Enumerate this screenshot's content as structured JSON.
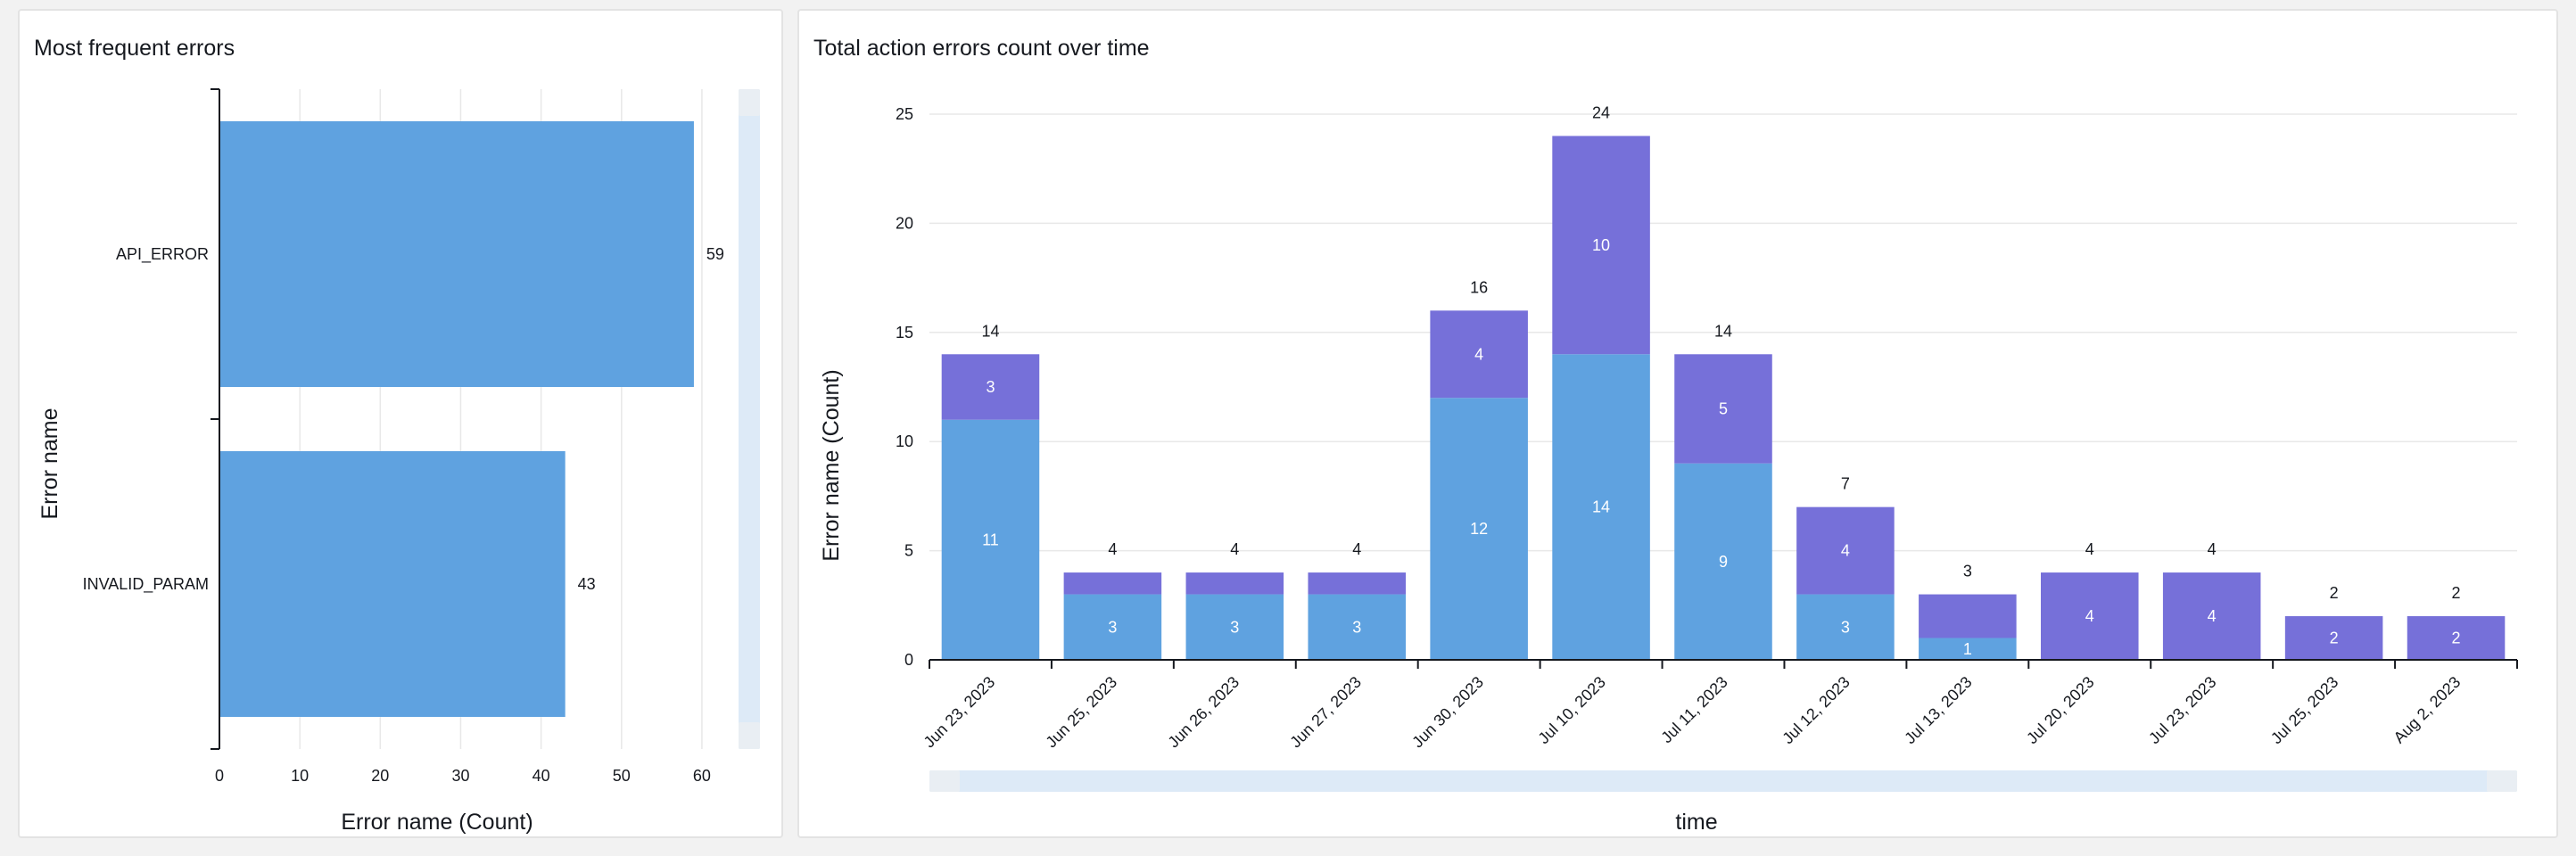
{
  "left_panel": {
    "title": "Most frequent errors"
  },
  "right_panel": {
    "title": "Total action errors count over time"
  },
  "colors": {
    "series_a": "#5fa2e0",
    "series_b": "#7670d9",
    "grid": "#e8e8e8",
    "axis": "#16191f",
    "scroll_track": "#ddeaf7"
  },
  "chart_data": [
    {
      "type": "bar",
      "orientation": "horizontal",
      "title": "Most frequent errors",
      "xlabel": "Error name (Count)",
      "ylabel": "Error name",
      "categories": [
        "API_ERROR",
        "INVALID_PARAM"
      ],
      "values": [
        59,
        43
      ],
      "xlim": [
        0,
        63
      ],
      "xticks": [
        0,
        10,
        20,
        30,
        40,
        50,
        60
      ],
      "grid": true,
      "data_labels": true
    },
    {
      "type": "bar",
      "stacked": true,
      "title": "Total action errors count over time",
      "xlabel": "time",
      "ylabel": "Error name (Count)",
      "categories": [
        "Jun 23, 2023",
        "Jun 25, 2023",
        "Jun 26, 2023",
        "Jun 27, 2023",
        "Jun 30, 2023",
        "Jul 10, 2023",
        "Jul 11, 2023",
        "Jul 12, 2023",
        "Jul 13, 2023",
        "Jul 20, 2023",
        "Jul 23, 2023",
        "Jul 25, 2023",
        "Aug 2, 2023"
      ],
      "series": [
        {
          "values": [
            11,
            3,
            3,
            3,
            12,
            14,
            9,
            3,
            1,
            0,
            0,
            0,
            0
          ]
        },
        {
          "values": [
            3,
            1,
            1,
            1,
            4,
            10,
            5,
            4,
            2,
            4,
            4,
            2,
            2
          ]
        }
      ],
      "segment_labels": [
        [
          "11",
          "3",
          "3",
          "3",
          "12",
          "14",
          "9",
          "3",
          "1",
          "",
          "",
          "",
          ""
        ],
        [
          "3",
          "",
          "",
          "",
          "4",
          "10",
          "5",
          "4",
          "",
          "4",
          "4",
          "2",
          "2"
        ]
      ],
      "totals": [
        14,
        4,
        4,
        4,
        16,
        24,
        14,
        7,
        3,
        4,
        4,
        2,
        2
      ],
      "ylim": [
        0,
        25
      ],
      "yticks": [
        0,
        5,
        10,
        15,
        20,
        25
      ],
      "grid": true
    }
  ]
}
